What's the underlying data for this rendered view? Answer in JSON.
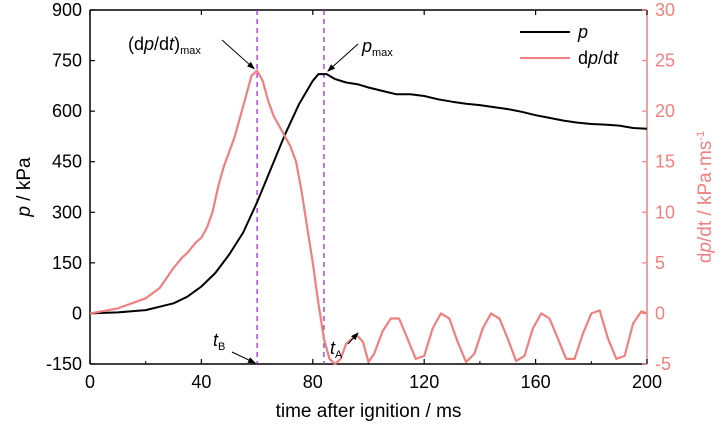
{
  "chart_data": {
    "type": "line",
    "xlabel": "time after ignition / ms",
    "ylabel_left": {
      "italic": "p",
      "rest": " / kPa"
    },
    "ylabel_right": {
      "italic_1": "p",
      "pre": "d",
      "mid": "/dt / kPa·ms",
      "sup": "-1"
    },
    "xlim": [
      0,
      200
    ],
    "ylim_left": [
      -150,
      900
    ],
    "ylim_right": [
      -5,
      30
    ],
    "xticks": [
      "0",
      "40",
      "80",
      "120",
      "160",
      "200"
    ],
    "yticks_left": [
      "-150",
      "0",
      "150",
      "300",
      "450",
      "600",
      "750",
      "900"
    ],
    "yticks_right": [
      "-5",
      "0",
      "5",
      "10",
      "15",
      "20",
      "25",
      "30"
    ],
    "colors": {
      "p": "#000000",
      "dpdt": "#f08080",
      "markers": "#9b30d9"
    },
    "legend": {
      "placement": "top-right",
      "entries": [
        {
          "pre": "",
          "italic": "p",
          "post": ""
        },
        {
          "pre": "d",
          "italic": "p",
          "post": "/d",
          "italic2": "t"
        }
      ]
    },
    "series": [
      {
        "name": "p",
        "axis": "left",
        "x": [
          0,
          10,
          20,
          30,
          35,
          40,
          45,
          50,
          55,
          60,
          65,
          70,
          75,
          80,
          82,
          85,
          88,
          92,
          96,
          100,
          110,
          115,
          120,
          125,
          130,
          135,
          140,
          145,
          150,
          155,
          160,
          165,
          170,
          175,
          180,
          185,
          190,
          195,
          200
        ],
        "y": [
          0,
          3,
          10,
          30,
          50,
          80,
          120,
          175,
          240,
          330,
          430,
          530,
          620,
          690,
          710,
          710,
          695,
          685,
          680,
          670,
          650,
          650,
          645,
          635,
          628,
          622,
          618,
          612,
          606,
          598,
          588,
          580,
          572,
          566,
          562,
          560,
          557,
          550,
          548
        ]
      },
      {
        "name": "dp/dt",
        "axis": "right",
        "x": [
          0,
          10,
          20,
          25,
          30,
          33,
          35,
          38,
          40,
          42,
          44,
          46,
          48,
          50,
          52,
          54,
          56,
          58,
          60,
          62,
          64,
          66,
          68,
          70,
          72,
          74,
          76,
          78,
          80,
          82,
          84,
          85,
          86,
          88,
          90,
          92,
          94,
          96,
          98,
          100,
          102,
          105,
          108,
          111,
          114,
          117,
          120,
          123,
          126,
          129,
          132,
          135,
          138,
          141,
          144,
          147,
          150,
          153,
          156,
          159,
          162,
          165,
          168,
          171,
          174,
          177,
          180,
          183,
          186,
          189,
          192,
          195,
          198,
          200
        ],
        "y": [
          0,
          0.5,
          1.5,
          2.5,
          4.5,
          5.5,
          6,
          7,
          7.5,
          8.5,
          10,
          12.5,
          14.5,
          16,
          17.5,
          19.5,
          21.5,
          23.5,
          24,
          23,
          21,
          19.5,
          18.5,
          17.5,
          16.5,
          15,
          12,
          8.5,
          5,
          1,
          -2.5,
          -3.5,
          -4.5,
          -5,
          -4.5,
          -3,
          -2.5,
          -2.2,
          -2.8,
          -4.8,
          -4,
          -1.8,
          -0.5,
          -0.5,
          -2.5,
          -4.5,
          -4.2,
          -1.5,
          0,
          -0.5,
          -2.8,
          -4.8,
          -4,
          -1.5,
          0,
          -0.5,
          -2.5,
          -4.7,
          -4.2,
          -1.5,
          0,
          -0.5,
          -2.5,
          -4.5,
          -4.5,
          -2,
          0,
          0.3,
          -2.5,
          -4.5,
          -4.2,
          -1,
          0.2,
          0
        ]
      }
    ],
    "vlines": [
      60,
      84
    ],
    "annotations": [
      {
        "kind": "dpmax",
        "pre": "(d",
        "italic": "p",
        "mid": "/d",
        "italic2": "t",
        "post": ")",
        "sub": "max"
      },
      {
        "kind": "pmax",
        "italic": "p",
        "sub": "max"
      },
      {
        "kind": "tB",
        "italic": "t",
        "sub": "B"
      },
      {
        "kind": "tA",
        "italic": "t",
        "sub": "A"
      }
    ]
  }
}
